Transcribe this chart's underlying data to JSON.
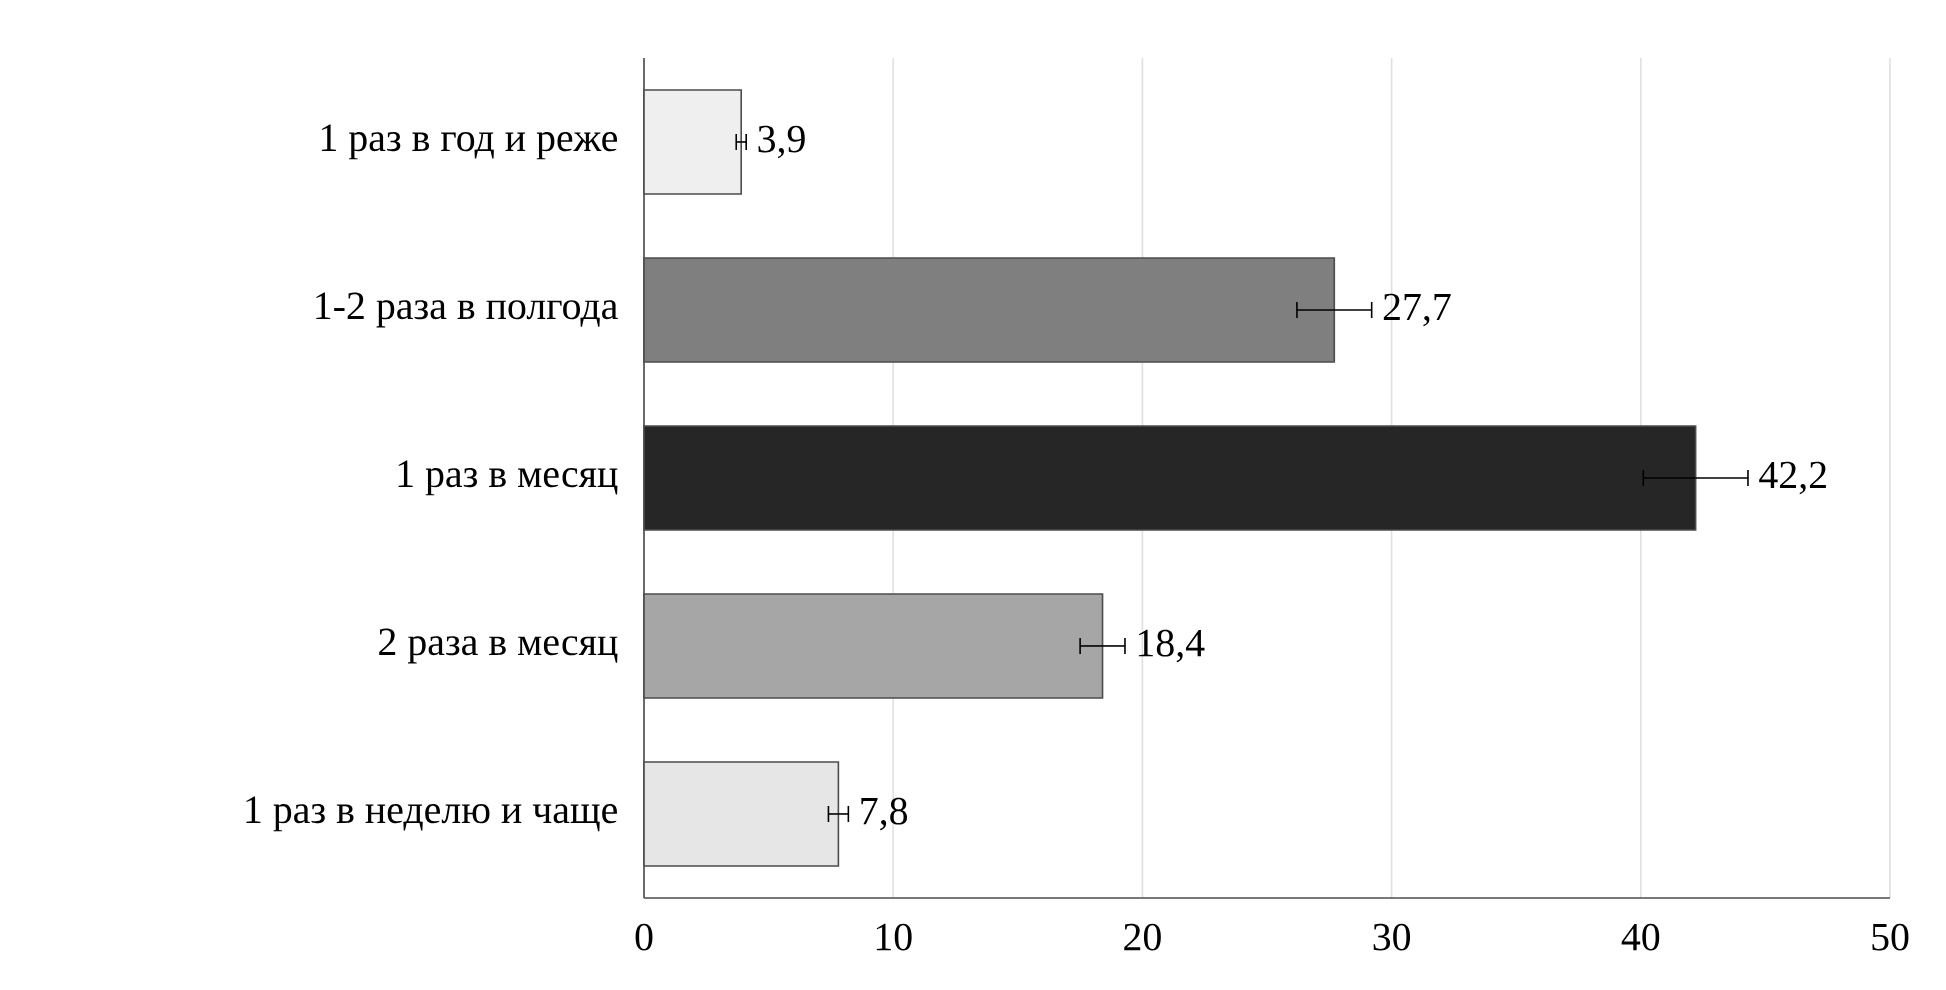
{
  "chart_data": {
    "type": "bar",
    "orientation": "horizontal",
    "categories": [
      "1 раз в год и реже",
      "1-2 раза в полгода",
      "1 раз в месяц",
      "2 раза в месяц",
      "1 раз в неделю и чаще"
    ],
    "values": [
      3.9,
      27.7,
      42.2,
      18.4,
      7.8
    ],
    "errors": [
      0.2,
      1.5,
      2.1,
      0.9,
      0.4
    ],
    "value_labels": [
      "3,9",
      "27,7",
      "42,2",
      "18,4",
      "7,8"
    ],
    "colors": [
      "#efefef",
      "#7f7f7f",
      "#262626",
      "#a6a6a6",
      "#e6e6e6"
    ],
    "xlim": [
      0,
      50
    ],
    "xticks": [
      0,
      10,
      20,
      30,
      40,
      50
    ],
    "grid": "x"
  }
}
